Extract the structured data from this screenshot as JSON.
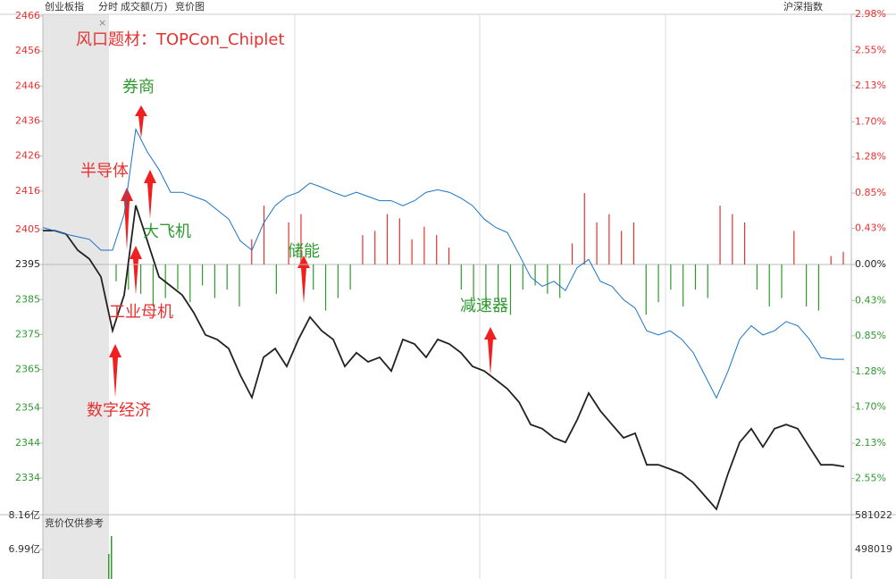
{
  "chart_data": {
    "type": "line",
    "title": "创业板指",
    "header": [
      "分时",
      "成交额(万)",
      "竞价图"
    ],
    "close": "×",
    "right_header": "沪深指数",
    "base": 2395,
    "up_color": "#e8312f",
    "down_color": "#2f9a2f",
    "ylim": [
      2323.8,
      2466.5
    ],
    "yticks": [
      2466,
      2456,
      2446,
      2436,
      2426,
      2416,
      2405,
      2395,
      2385,
      2375,
      2365,
      2354,
      2344,
      2334
    ],
    "y2lim": [
      -2.97,
      2.98
    ],
    "y2ticks": [
      {
        "value": 2.98,
        "label": "2.98%"
      },
      {
        "value": 2.55,
        "label": "2.55%"
      },
      {
        "value": 2.13,
        "label": "2.13%"
      },
      {
        "value": 1.7,
        "label": "1.70%"
      },
      {
        "value": 1.28,
        "label": "1.28%"
      },
      {
        "value": 0.85,
        "label": "0.85%"
      },
      {
        "value": 0.43,
        "label": "0.43%"
      },
      {
        "value": 0,
        "label": "0.00%"
      },
      {
        "value": -0.43,
        "label": "0.43%"
      },
      {
        "value": -0.85,
        "label": "0.85%"
      },
      {
        "value": -1.28,
        "label": "1.28%"
      },
      {
        "value": -1.7,
        "label": "1.70%"
      },
      {
        "value": -2.13,
        "label": "2.13%"
      },
      {
        "value": -2.55,
        "label": "2.55%"
      }
    ],
    "series": [
      {
        "color": "#222222",
        "axis": "y",
        "values": [
          2404.7,
          2404.7,
          2403.7,
          2399.1,
          2396.6,
          2391.5,
          2376.1,
          2386.3,
          2411.9,
          2401.7,
          2391.5,
          2388.9,
          2386.3,
          2381.2,
          2374.9,
          2373.6,
          2371.0,
          2363.4,
          2357.0,
          2368.5,
          2371.0,
          2365.9,
          2373.6,
          2380.0,
          2376.1,
          2373.6,
          2365.9,
          2369.8,
          2367.2,
          2368.5,
          2364.6,
          2373.6,
          2372.3,
          2368.5,
          2373.6,
          2372.3,
          2369.8,
          2365.9,
          2364.6,
          2362.1,
          2359.5,
          2355.7,
          2349.3,
          2348.1,
          2345.5,
          2344.2,
          2350.6,
          2358.3,
          2353.2,
          2349.3,
          2345.5,
          2346.8,
          2337.8,
          2337.8,
          2336.6,
          2335.3,
          2332.7,
          2328.9,
          2325.1,
          2335.3,
          2344.2,
          2348.1,
          2342.9,
          2348.1,
          2349.3,
          2348.1,
          2342.9,
          2337.8,
          2337.8,
          2337.3
        ]
      },
      {
        "color": "#1a73c8",
        "axis": "y2",
        "values": [
          0.44,
          0.4,
          0.36,
          0.33,
          0.3,
          0.17,
          0.17,
          0.6,
          1.61,
          1.34,
          1.13,
          0.86,
          0.86,
          0.81,
          0.76,
          0.65,
          0.54,
          0.28,
          0.17,
          0.49,
          0.7,
          0.81,
          0.86,
          0.97,
          0.92,
          0.86,
          0.81,
          0.86,
          0.81,
          0.76,
          0.76,
          0.7,
          0.76,
          0.86,
          0.89,
          0.86,
          0.79,
          0.7,
          0.54,
          0.44,
          0.38,
          0.12,
          -0.15,
          -0.26,
          -0.2,
          -0.31,
          -0.04,
          0.06,
          -0.2,
          -0.26,
          -0.42,
          -0.52,
          -0.79,
          -0.84,
          -0.79,
          -0.89,
          -1.05,
          -1.32,
          -1.59,
          -1.27,
          -0.89,
          -0.73,
          -0.84,
          -0.79,
          -0.68,
          -0.73,
          -0.89,
          -1.11,
          -1.13,
          -1.13
        ]
      }
    ],
    "bars": {
      "axis": "y2",
      "values": [
        -0.2,
        -0.3,
        -0.35,
        -0.5,
        -0.4,
        -0.3,
        -0.45,
        -0.25,
        -0.4,
        -0.3,
        -0.5,
        0.3,
        0.7,
        -0.35,
        0.5,
        0.6,
        -0.3,
        -0.55,
        -0.4,
        -0.3,
        0.35,
        0.4,
        0.6,
        0.55,
        0.3,
        0.45,
        0.35,
        0.2,
        -0.3,
        -0.4,
        -0.5,
        -0.45,
        -0.6,
        -0.3,
        -0.25,
        -0.35,
        -0.4,
        0.25,
        0.85,
        0.5,
        0.6,
        0.4,
        0.5,
        -0.6,
        -0.45,
        -0.3,
        -0.5,
        -0.3,
        -0.4,
        0.7,
        0.6,
        0.5,
        -0.3,
        -0.5,
        -0.4,
        0.4,
        -0.5,
        -0.55,
        0.1,
        0.15
      ]
    },
    "annotations": [
      {
        "text": "风口题材：TOPCon_Chiplet",
        "color": "#e8312f"
      },
      {
        "text": "券商",
        "color": "#2f9a2f"
      },
      {
        "text": "半导体",
        "color": "#e8312f"
      },
      {
        "text": "大飞机",
        "color": "#2f9a2f"
      },
      {
        "text": "储能",
        "color": "#2f9a2f"
      },
      {
        "text": "工业母机",
        "color": "#e8312f"
      },
      {
        "text": "减速器",
        "color": "#2f9a2f"
      },
      {
        "text": "数字经济",
        "color": "#e8312f"
      }
    ],
    "volume_panel": {
      "label": "竞价仅供参考",
      "ylim": [
        6.0,
        8.16
      ],
      "yticks": [
        {
          "value": 8.16,
          "label": "8.16亿"
        },
        {
          "value": 6.99,
          "label": "6.99亿"
        }
      ],
      "y2ticks": [
        581022,
        498019
      ],
      "color": "#2f9a2f",
      "values": [
        6.84,
        7.44
      ]
    }
  }
}
